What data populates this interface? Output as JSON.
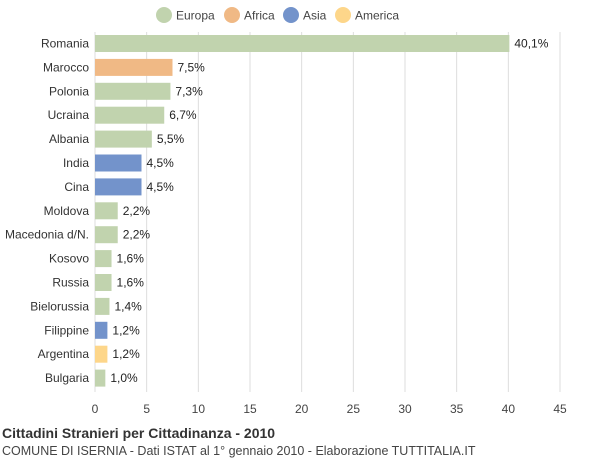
{
  "colors": {
    "Europa": "#c1d3ae",
    "Africa": "#f0b985",
    "Asia": "#7393cb",
    "America": "#fdd68a",
    "grid": "#dddddd"
  },
  "chart_data": {
    "type": "bar",
    "orientation": "horizontal",
    "title": "Cittadini Stranieri per Cittadinanza - 2010",
    "subtitle": "COMUNE DI ISERNIA - Dati ISTAT al 1° gennaio 2010 - Elaborazione TUTTITALIA.IT",
    "legend": [
      "Europa",
      "Africa",
      "Asia",
      "America"
    ],
    "legend_position": "top",
    "xlim": [
      0,
      45
    ],
    "xticks": [
      0,
      5,
      10,
      15,
      20,
      25,
      30,
      35,
      40,
      45
    ],
    "grid": true,
    "categories": [
      "Romania",
      "Marocco",
      "Polonia",
      "Ucraina",
      "Albania",
      "India",
      "Cina",
      "Moldova",
      "Macedonia d/N.",
      "Kosovo",
      "Russia",
      "Bielorussia",
      "Filippine",
      "Argentina",
      "Bulgaria"
    ],
    "values": [
      40.1,
      7.5,
      7.3,
      6.7,
      5.5,
      4.5,
      4.5,
      2.2,
      2.2,
      1.6,
      1.6,
      1.4,
      1.2,
      1.2,
      1.0
    ],
    "value_labels": [
      "40,1%",
      "7,5%",
      "7,3%",
      "6,7%",
      "5,5%",
      "4,5%",
      "4,5%",
      "2,2%",
      "2,2%",
      "1,6%",
      "1,6%",
      "1,4%",
      "1,2%",
      "1,2%",
      "1,0%"
    ],
    "groups": [
      "Europa",
      "Africa",
      "Europa",
      "Europa",
      "Europa",
      "Asia",
      "Asia",
      "Europa",
      "Europa",
      "Europa",
      "Europa",
      "Europa",
      "Asia",
      "America",
      "Europa"
    ]
  }
}
